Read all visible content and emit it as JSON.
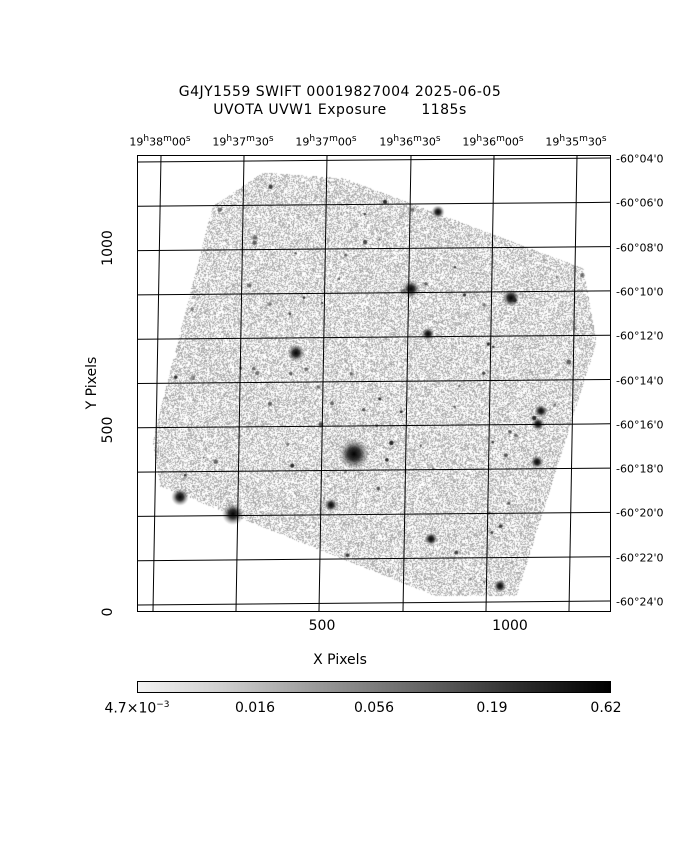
{
  "title": {
    "line1": "G4JY1559 SWIFT 00019827004 2025-06-05",
    "line2": "UVOTA UVW1 Exposure       1185s"
  },
  "ra_ticks": [
    "19h38m00s",
    "19h37m30s",
    "19h37m00s",
    "19h36m30s",
    "19h36m00s",
    "19h35m30s"
  ],
  "ra_ticks_display": [
    {
      "h": "19",
      "m": "38",
      "s": "00"
    },
    {
      "h": "19",
      "m": "37",
      "s": "30"
    },
    {
      "h": "19",
      "m": "37",
      "s": "00"
    },
    {
      "h": "19",
      "m": "36",
      "s": "30"
    },
    {
      "h": "19",
      "m": "36",
      "s": "00"
    },
    {
      "h": "19",
      "m": "35",
      "s": "30"
    }
  ],
  "dec_ticks": [
    "-60°04'0",
    "-60°06'0",
    "-60°08'0",
    "-60°10'0",
    "-60°12'0",
    "-60°14'0",
    "-60°16'0",
    "-60°18'0",
    "-60°20'0",
    "-60°22'0",
    "-60°24'0"
  ],
  "x_axis": {
    "label": "X Pixels",
    "ticks": [
      "500",
      "1000"
    ]
  },
  "y_axis": {
    "label": "Y Pixels",
    "ticks": [
      "0",
      "500",
      "1000"
    ]
  },
  "colorbar": {
    "first_mantissa": "4.7×10",
    "first_exponent": "−3",
    "labels": [
      "0.016",
      "0.056",
      "0.19",
      "0.62"
    ],
    "colors": [
      "#f2f2f2",
      "#000000"
    ]
  }
}
